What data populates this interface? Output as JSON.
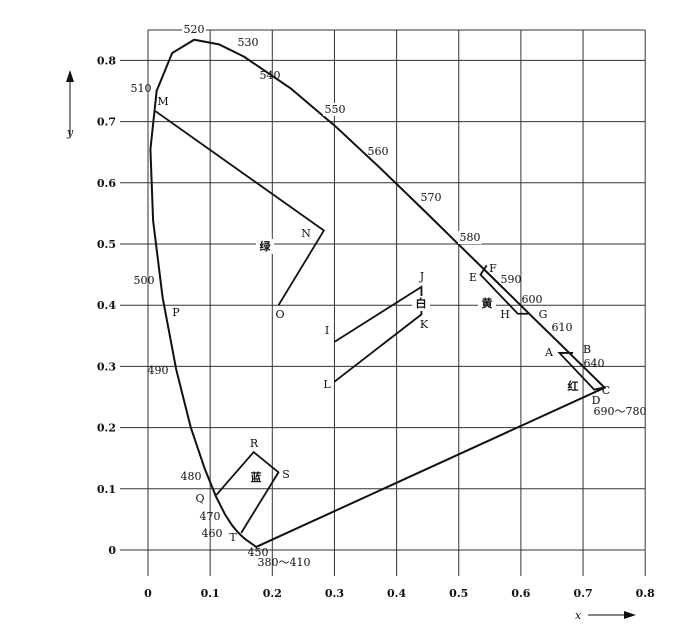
{
  "chart_data": {
    "type": "line",
    "xlabel": "x",
    "ylabel": "y",
    "xlim": [
      0,
      0.8
    ],
    "ylim": [
      0,
      0.8
    ],
    "grid": true,
    "x_ticks": [
      "0",
      "0.1",
      "0.2",
      "0.3",
      "0.4",
      "0.5",
      "0.6",
      "0.7",
      "0.8"
    ],
    "y_ticks": [
      "0",
      "0.1",
      "0.2",
      "0.3",
      "0.4",
      "0.5",
      "0.6",
      "0.7",
      "0.8"
    ],
    "spectral_locus": [
      [
        0.1741,
        0.005
      ],
      [
        0.1566,
        0.0177
      ],
      [
        0.151,
        0.0227
      ],
      [
        0.144,
        0.0297
      ],
      [
        0.1355,
        0.0399
      ],
      [
        0.1241,
        0.0578
      ],
      [
        0.1096,
        0.0868
      ],
      [
        0.0913,
        0.1327
      ],
      [
        0.0687,
        0.2007
      ],
      [
        0.0454,
        0.295
      ],
      [
        0.0235,
        0.4127
      ],
      [
        0.0082,
        0.5384
      ],
      [
        0.0039,
        0.6548
      ],
      [
        0.0139,
        0.7502
      ],
      [
        0.0389,
        0.812
      ],
      [
        0.0743,
        0.8338
      ],
      [
        0.1142,
        0.8262
      ],
      [
        0.1547,
        0.8059
      ],
      [
        0.2296,
        0.7543
      ],
      [
        0.3016,
        0.6923
      ],
      [
        0.3731,
        0.6245
      ],
      [
        0.4441,
        0.5547
      ],
      [
        0.5125,
        0.4866
      ],
      [
        0.5752,
        0.4242
      ],
      [
        0.627,
        0.3725
      ],
      [
        0.6658,
        0.334
      ],
      [
        0.6915,
        0.3083
      ],
      [
        0.719,
        0.2809
      ],
      [
        0.7347,
        0.2653
      ]
    ],
    "wavelength_labels": [
      "520",
      "530",
      "540",
      "550",
      "560",
      "570",
      "580",
      "590",
      "600",
      "610",
      "640",
      "690～780",
      "510",
      "500",
      "490",
      "480",
      "470",
      "460",
      "450",
      "380～410"
    ],
    "regions": [
      {
        "name": "绿",
        "points": [
          [
            0.012,
            0.717
          ],
          [
            0.283,
            0.522
          ],
          [
            0.21,
            0.4
          ]
        ],
        "vertex_labels": [
          "M",
          "N",
          "O"
        ],
        "closed": false
      },
      {
        "name": "白",
        "points": [
          [
            0.3,
            0.34
          ],
          [
            0.44,
            0.43
          ],
          [
            0.44,
            0.385
          ],
          [
            0.3,
            0.275
          ]
        ],
        "vertex_labels": [
          "I",
          "J",
          "K",
          "L"
        ],
        "closed": false
      },
      {
        "name": "黄",
        "points": [
          [
            0.545,
            0.465
          ],
          [
            0.535,
            0.45
          ],
          [
            0.595,
            0.386
          ],
          [
            0.612,
            0.386
          ]
        ],
        "vertex_labels": [
          "F",
          "E",
          "H",
          "G"
        ],
        "closed": false
      },
      {
        "name": "红",
        "points": [
          [
            0.684,
            0.322
          ],
          [
            0.662,
            0.322
          ],
          [
            0.718,
            0.262
          ],
          [
            0.735,
            0.266
          ]
        ],
        "vertex_labels": [
          "B",
          "A",
          "D",
          "C"
        ],
        "closed": false
      },
      {
        "name": "蓝",
        "points": [
          [
            0.11,
            0.09
          ],
          [
            0.17,
            0.16
          ],
          [
            0.21,
            0.127
          ],
          [
            0.15,
            0.028
          ]
        ],
        "vertex_labels": [
          "Q",
          "R",
          "S",
          "T"
        ],
        "closed": false
      }
    ],
    "point_labels": [
      "P"
    ]
  }
}
